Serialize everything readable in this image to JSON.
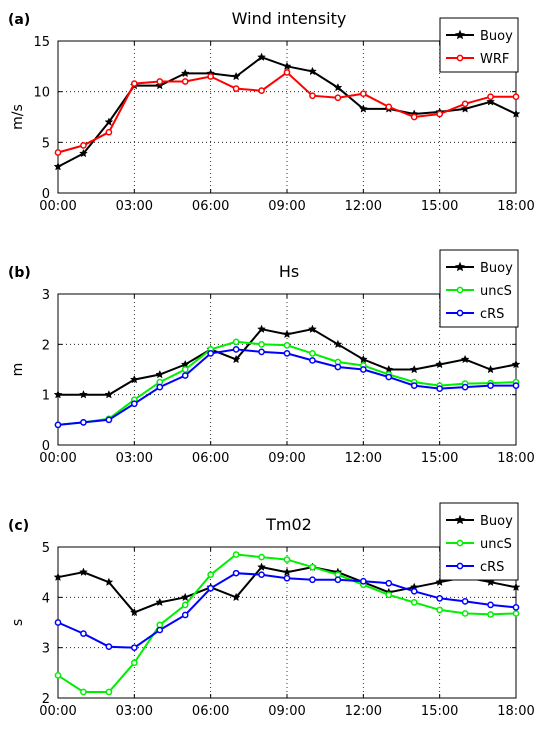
{
  "chart_data": [
    {
      "type": "line",
      "panel_label": "(a)",
      "title": "Wind intensity",
      "ylabel": "m/s",
      "xlabel": "",
      "x_ticks": [
        "00:00",
        "03:00",
        "06:00",
        "09:00",
        "12:00",
        "15:00",
        "18:00"
      ],
      "xlim": [
        0,
        18
      ],
      "ylim": [
        0,
        15
      ],
      "y_ticks": [
        0,
        5,
        10,
        15
      ],
      "grid": true,
      "legend_position": "top-right",
      "x": [
        0,
        1,
        2,
        3,
        4,
        5,
        6,
        7,
        8,
        9,
        10,
        11,
        12,
        13,
        14,
        15,
        16,
        17,
        18
      ],
      "series": [
        {
          "name": "Buoy",
          "color": "#000000",
          "marker": "star",
          "values": [
            2.6,
            3.9,
            7.0,
            10.6,
            10.6,
            11.8,
            11.8,
            11.5,
            13.4,
            12.5,
            12.0,
            10.4,
            8.3,
            8.3,
            7.8,
            8.0,
            8.3,
            9.0,
            7.8
          ]
        },
        {
          "name": "WRF",
          "color": "#ff0000",
          "marker": "circle",
          "values": [
            4.0,
            4.7,
            6.0,
            10.8,
            11.0,
            11.0,
            11.5,
            10.3,
            10.1,
            11.9,
            9.6,
            9.4,
            9.8,
            8.5,
            7.5,
            7.8,
            8.8,
            9.5,
            9.5
          ]
        }
      ]
    },
    {
      "type": "line",
      "panel_label": "(b)",
      "title": "Hs",
      "ylabel": "m",
      "xlabel": "",
      "x_ticks": [
        "00:00",
        "03:00",
        "06:00",
        "09:00",
        "12:00",
        "15:00",
        "18:00"
      ],
      "xlim": [
        0,
        18
      ],
      "ylim": [
        0,
        3
      ],
      "y_ticks": [
        0,
        1,
        2,
        3
      ],
      "grid": true,
      "legend_position": "top-right",
      "x": [
        0,
        1,
        2,
        3,
        4,
        5,
        6,
        7,
        8,
        9,
        10,
        11,
        12,
        13,
        14,
        15,
        16,
        17,
        18
      ],
      "series": [
        {
          "name": "Buoy",
          "color": "#000000",
          "marker": "star",
          "values": [
            1.0,
            1.0,
            1.0,
            1.3,
            1.4,
            1.6,
            1.9,
            1.7,
            2.3,
            2.2,
            2.3,
            2.0,
            1.7,
            1.5,
            1.5,
            1.6,
            1.7,
            1.5,
            1.6
          ]
        },
        {
          "name": "uncS",
          "color": "#00ee00",
          "marker": "circle",
          "values": [
            0.4,
            0.45,
            0.52,
            0.9,
            1.25,
            1.5,
            1.9,
            2.05,
            2.0,
            1.98,
            1.82,
            1.65,
            1.58,
            1.4,
            1.25,
            1.18,
            1.22,
            1.23,
            1.25
          ]
        },
        {
          "name": "cRS",
          "color": "#0000ff",
          "marker": "circle",
          "values": [
            0.4,
            0.45,
            0.5,
            0.82,
            1.15,
            1.38,
            1.82,
            1.9,
            1.85,
            1.82,
            1.68,
            1.55,
            1.5,
            1.35,
            1.18,
            1.12,
            1.15,
            1.18,
            1.18
          ]
        }
      ]
    },
    {
      "type": "line",
      "panel_label": "(c)",
      "title": "Tm02",
      "ylabel": "s",
      "xlabel": "",
      "x_ticks": [
        "00:00",
        "03:00",
        "06:00",
        "09:00",
        "12:00",
        "15:00",
        "18:00"
      ],
      "xlim": [
        0,
        18
      ],
      "ylim": [
        2,
        5
      ],
      "y_ticks": [
        2,
        3,
        4,
        5
      ],
      "grid": true,
      "legend_position": "top-right",
      "x": [
        0,
        1,
        2,
        3,
        4,
        5,
        6,
        7,
        8,
        9,
        10,
        11,
        12,
        13,
        14,
        15,
        16,
        17,
        18
      ],
      "series": [
        {
          "name": "Buoy",
          "color": "#000000",
          "marker": "star",
          "values": [
            4.4,
            4.5,
            4.3,
            3.7,
            3.9,
            4.0,
            4.2,
            4.0,
            4.6,
            4.5,
            4.6,
            4.5,
            4.3,
            4.1,
            4.2,
            4.3,
            4.4,
            4.3,
            4.2
          ]
        },
        {
          "name": "uncS",
          "color": "#00ee00",
          "marker": "circle",
          "values": [
            2.45,
            2.12,
            2.12,
            2.7,
            3.45,
            3.85,
            4.45,
            4.85,
            4.8,
            4.75,
            4.6,
            4.45,
            4.25,
            4.05,
            3.9,
            3.75,
            3.68,
            3.66,
            3.68
          ]
        },
        {
          "name": "cRS",
          "color": "#0000ff",
          "marker": "circle",
          "values": [
            3.5,
            3.28,
            3.02,
            3.0,
            3.35,
            3.65,
            4.18,
            4.48,
            4.45,
            4.38,
            4.35,
            4.35,
            4.32,
            4.28,
            4.12,
            3.98,
            3.92,
            3.85,
            3.8
          ]
        }
      ]
    }
  ]
}
